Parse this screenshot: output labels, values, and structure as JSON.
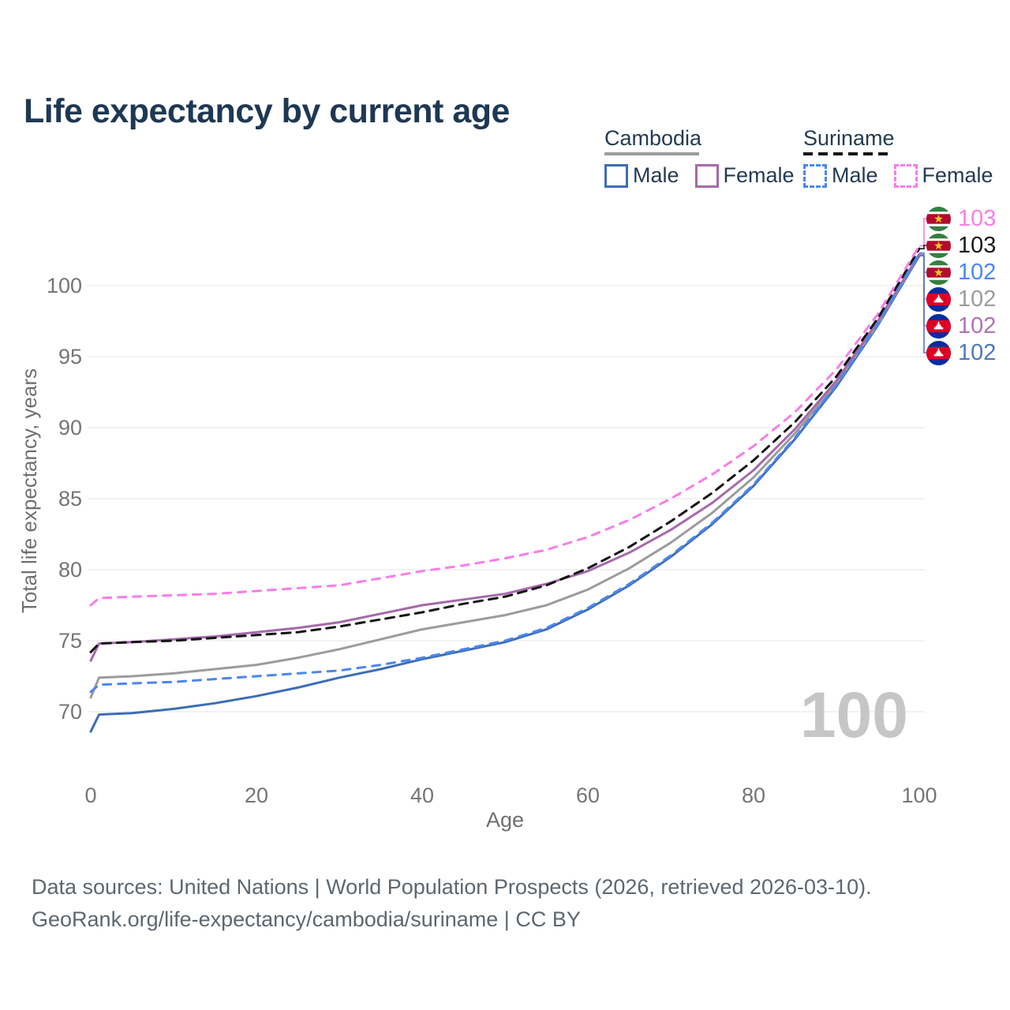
{
  "title": "Life expectancy by current age",
  "watermark": "100",
  "legend": {
    "cambodia": {
      "title": "Cambodia",
      "male_label": "Male",
      "female_label": "Female"
    },
    "suriname": {
      "title": "Suriname",
      "male_label": "Male",
      "female_label": "Female"
    }
  },
  "colors": {
    "title_text": "#1e3854",
    "legend_text": "#243b53",
    "axis_text": "#757575",
    "axis_title_text": "#6f6f6f",
    "gridline": "#ededed",
    "watermark": "#c6c6c6",
    "footer_text": "#5d6770",
    "cambodia_male": "#3e6db6",
    "cambodia_female": "#a46aaa",
    "cambodia_total": "#9c9c9c",
    "suriname_male": "#4b87f0",
    "suriname_female": "#fb7ce8",
    "suriname_total": "#151515"
  },
  "chart_data": {
    "type": "line",
    "title": "Life expectancy by current age",
    "xlabel": "Age",
    "ylabel": "Total life expectancy, years",
    "x_ticks": [
      0,
      20,
      40,
      60,
      80,
      100
    ],
    "y_ticks": [
      70,
      75,
      80,
      85,
      90,
      95,
      100
    ],
    "xlim": [
      0,
      100
    ],
    "ylim": [
      68,
      103
    ],
    "grid": "horizontal",
    "legend_position": "top-right",
    "x": [
      0,
      1,
      5,
      10,
      15,
      20,
      25,
      30,
      35,
      40,
      45,
      50,
      55,
      60,
      65,
      70,
      75,
      80,
      85,
      90,
      95,
      100
    ],
    "series": [
      {
        "name": "cambodia_male",
        "country": "Cambodia",
        "sex": "Male",
        "line": "solid",
        "color_key": "cambodia_male",
        "values": [
          68.6,
          69.8,
          69.9,
          70.2,
          70.6,
          71.1,
          71.7,
          72.4,
          73.0,
          73.7,
          74.3,
          74.9,
          75.8,
          77.2,
          78.9,
          80.9,
          83.2,
          85.9,
          89.2,
          92.9,
          97.2,
          102.1
        ],
        "end_label": "102"
      },
      {
        "name": "cambodia_total",
        "country": "Cambodia",
        "sex": "Both",
        "line": "solid",
        "color_key": "cambodia_total",
        "values": [
          71.0,
          72.4,
          72.5,
          72.7,
          73.0,
          73.3,
          73.8,
          74.4,
          75.1,
          75.8,
          76.3,
          76.8,
          77.5,
          78.6,
          80.1,
          81.9,
          84.0,
          86.5,
          89.6,
          93.1,
          97.3,
          102.2
        ],
        "end_label": "102"
      },
      {
        "name": "cambodia_female",
        "country": "Cambodia",
        "sex": "Female",
        "line": "solid",
        "color_key": "cambodia_female",
        "values": [
          73.6,
          74.8,
          74.9,
          75.1,
          75.3,
          75.6,
          75.9,
          76.3,
          76.9,
          77.5,
          77.9,
          78.3,
          79.0,
          79.9,
          81.2,
          82.8,
          84.7,
          87.0,
          89.9,
          93.3,
          97.5,
          102.2
        ],
        "end_label": "102"
      },
      {
        "name": "suriname_male",
        "country": "Suriname",
        "sex": "Male",
        "line": "dashed",
        "color_key": "suriname_male",
        "values": [
          71.4,
          71.9,
          72.0,
          72.1,
          72.3,
          72.5,
          72.7,
          72.9,
          73.3,
          73.8,
          74.4,
          75.0,
          75.9,
          77.3,
          79.0,
          81.0,
          83.3,
          86.0,
          89.3,
          93.0,
          97.3,
          102.3
        ],
        "end_label": "102"
      },
      {
        "name": "suriname_total",
        "country": "Suriname",
        "sex": "Both",
        "line": "dashed",
        "color_key": "suriname_total",
        "values": [
          74.2,
          74.8,
          74.9,
          75.0,
          75.2,
          75.4,
          75.6,
          76.0,
          76.5,
          77.0,
          77.6,
          78.1,
          78.9,
          80.1,
          81.6,
          83.4,
          85.4,
          87.7,
          90.4,
          93.6,
          97.7,
          102.6
        ],
        "end_label": "103"
      },
      {
        "name": "suriname_female",
        "country": "Suriname",
        "sex": "Female",
        "line": "dashed",
        "color_key": "suriname_female",
        "values": [
          77.5,
          78.0,
          78.1,
          78.2,
          78.3,
          78.5,
          78.7,
          78.9,
          79.4,
          79.9,
          80.3,
          80.8,
          81.4,
          82.3,
          83.5,
          85.0,
          86.7,
          88.7,
          91.1,
          94.1,
          98.0,
          102.8
        ],
        "end_label": "103"
      }
    ]
  },
  "end_labels": [
    {
      "series": "suriname_female",
      "flag": "suriname",
      "value": "103",
      "color": "#fb7ce8"
    },
    {
      "series": "suriname_total",
      "flag": "suriname",
      "value": "103",
      "color": "#1a1a1a"
    },
    {
      "series": "suriname_male",
      "flag": "suriname",
      "value": "102",
      "color": "#4b87f0"
    },
    {
      "series": "cambodia_total",
      "flag": "cambodia",
      "value": "102",
      "color": "#9c9c9c"
    },
    {
      "series": "cambodia_female",
      "flag": "cambodia",
      "value": "102",
      "color": "#ad74b4"
    },
    {
      "series": "cambodia_male",
      "flag": "cambodia",
      "value": "102",
      "color": "#4e79bd"
    }
  ],
  "footer": {
    "line1": "Data sources: United Nations | World Population Prospects (2026, retrieved 2026-03-10).",
    "line2": "GeoRank.org/life-expectancy/cambodia/suriname | CC BY"
  }
}
